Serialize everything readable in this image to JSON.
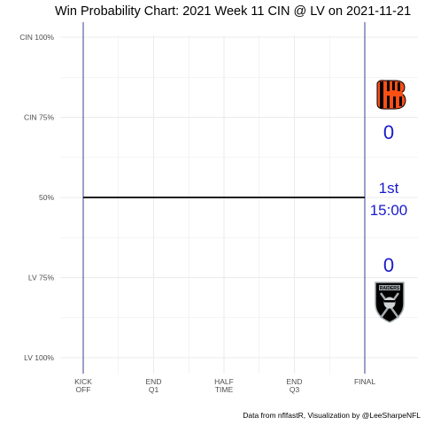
{
  "chart_data": {
    "type": "line",
    "title": "Win Probability Chart: 2021 Week 11 CIN @ LV on 2021-11-21",
    "caption": "Data from nflfastR, Visualization by @LeeSharpeNFL",
    "x_ticks": [
      {
        "value": 0,
        "lines": [
          "KICK",
          "OFF"
        ]
      },
      {
        "value": 900,
        "lines": [
          "END",
          "Q1"
        ]
      },
      {
        "value": 1800,
        "lines": [
          "HALF",
          "TIME"
        ]
      },
      {
        "value": 2700,
        "lines": [
          "END",
          "Q3"
        ]
      },
      {
        "value": 3600,
        "lines": [
          "FINAL"
        ]
      }
    ],
    "y_ticks": [
      {
        "value": 1.0,
        "label": "CIN 100%"
      },
      {
        "value": 0.75,
        "label": "CIN 75%"
      },
      {
        "value": 0.5,
        "label": "50%"
      },
      {
        "value": 0.25,
        "label": "LV 75%"
      },
      {
        "value": 0.0,
        "label": "LV 100%"
      }
    ],
    "xlim": [
      0,
      3600
    ],
    "ylim": [
      0,
      1
    ],
    "series": [
      {
        "x": [
          0,
          3600
        ],
        "y": [
          0.5,
          0.5
        ]
      }
    ],
    "vlines": [
      0,
      3600
    ],
    "grid": true,
    "scores": {
      "away": "0",
      "home": "0"
    },
    "clock": {
      "quarter": "1st",
      "time": "15:00"
    },
    "logos": {
      "away": "bengals-logo",
      "home": "raiders-logo"
    },
    "colors": {
      "line": "#000000",
      "vline": "#2b2b8c",
      "score_text": "#1a1acc",
      "grid": "#ebebeb",
      "bengals_orange": "#fb4f14",
      "raiders_black": "#000000"
    }
  }
}
